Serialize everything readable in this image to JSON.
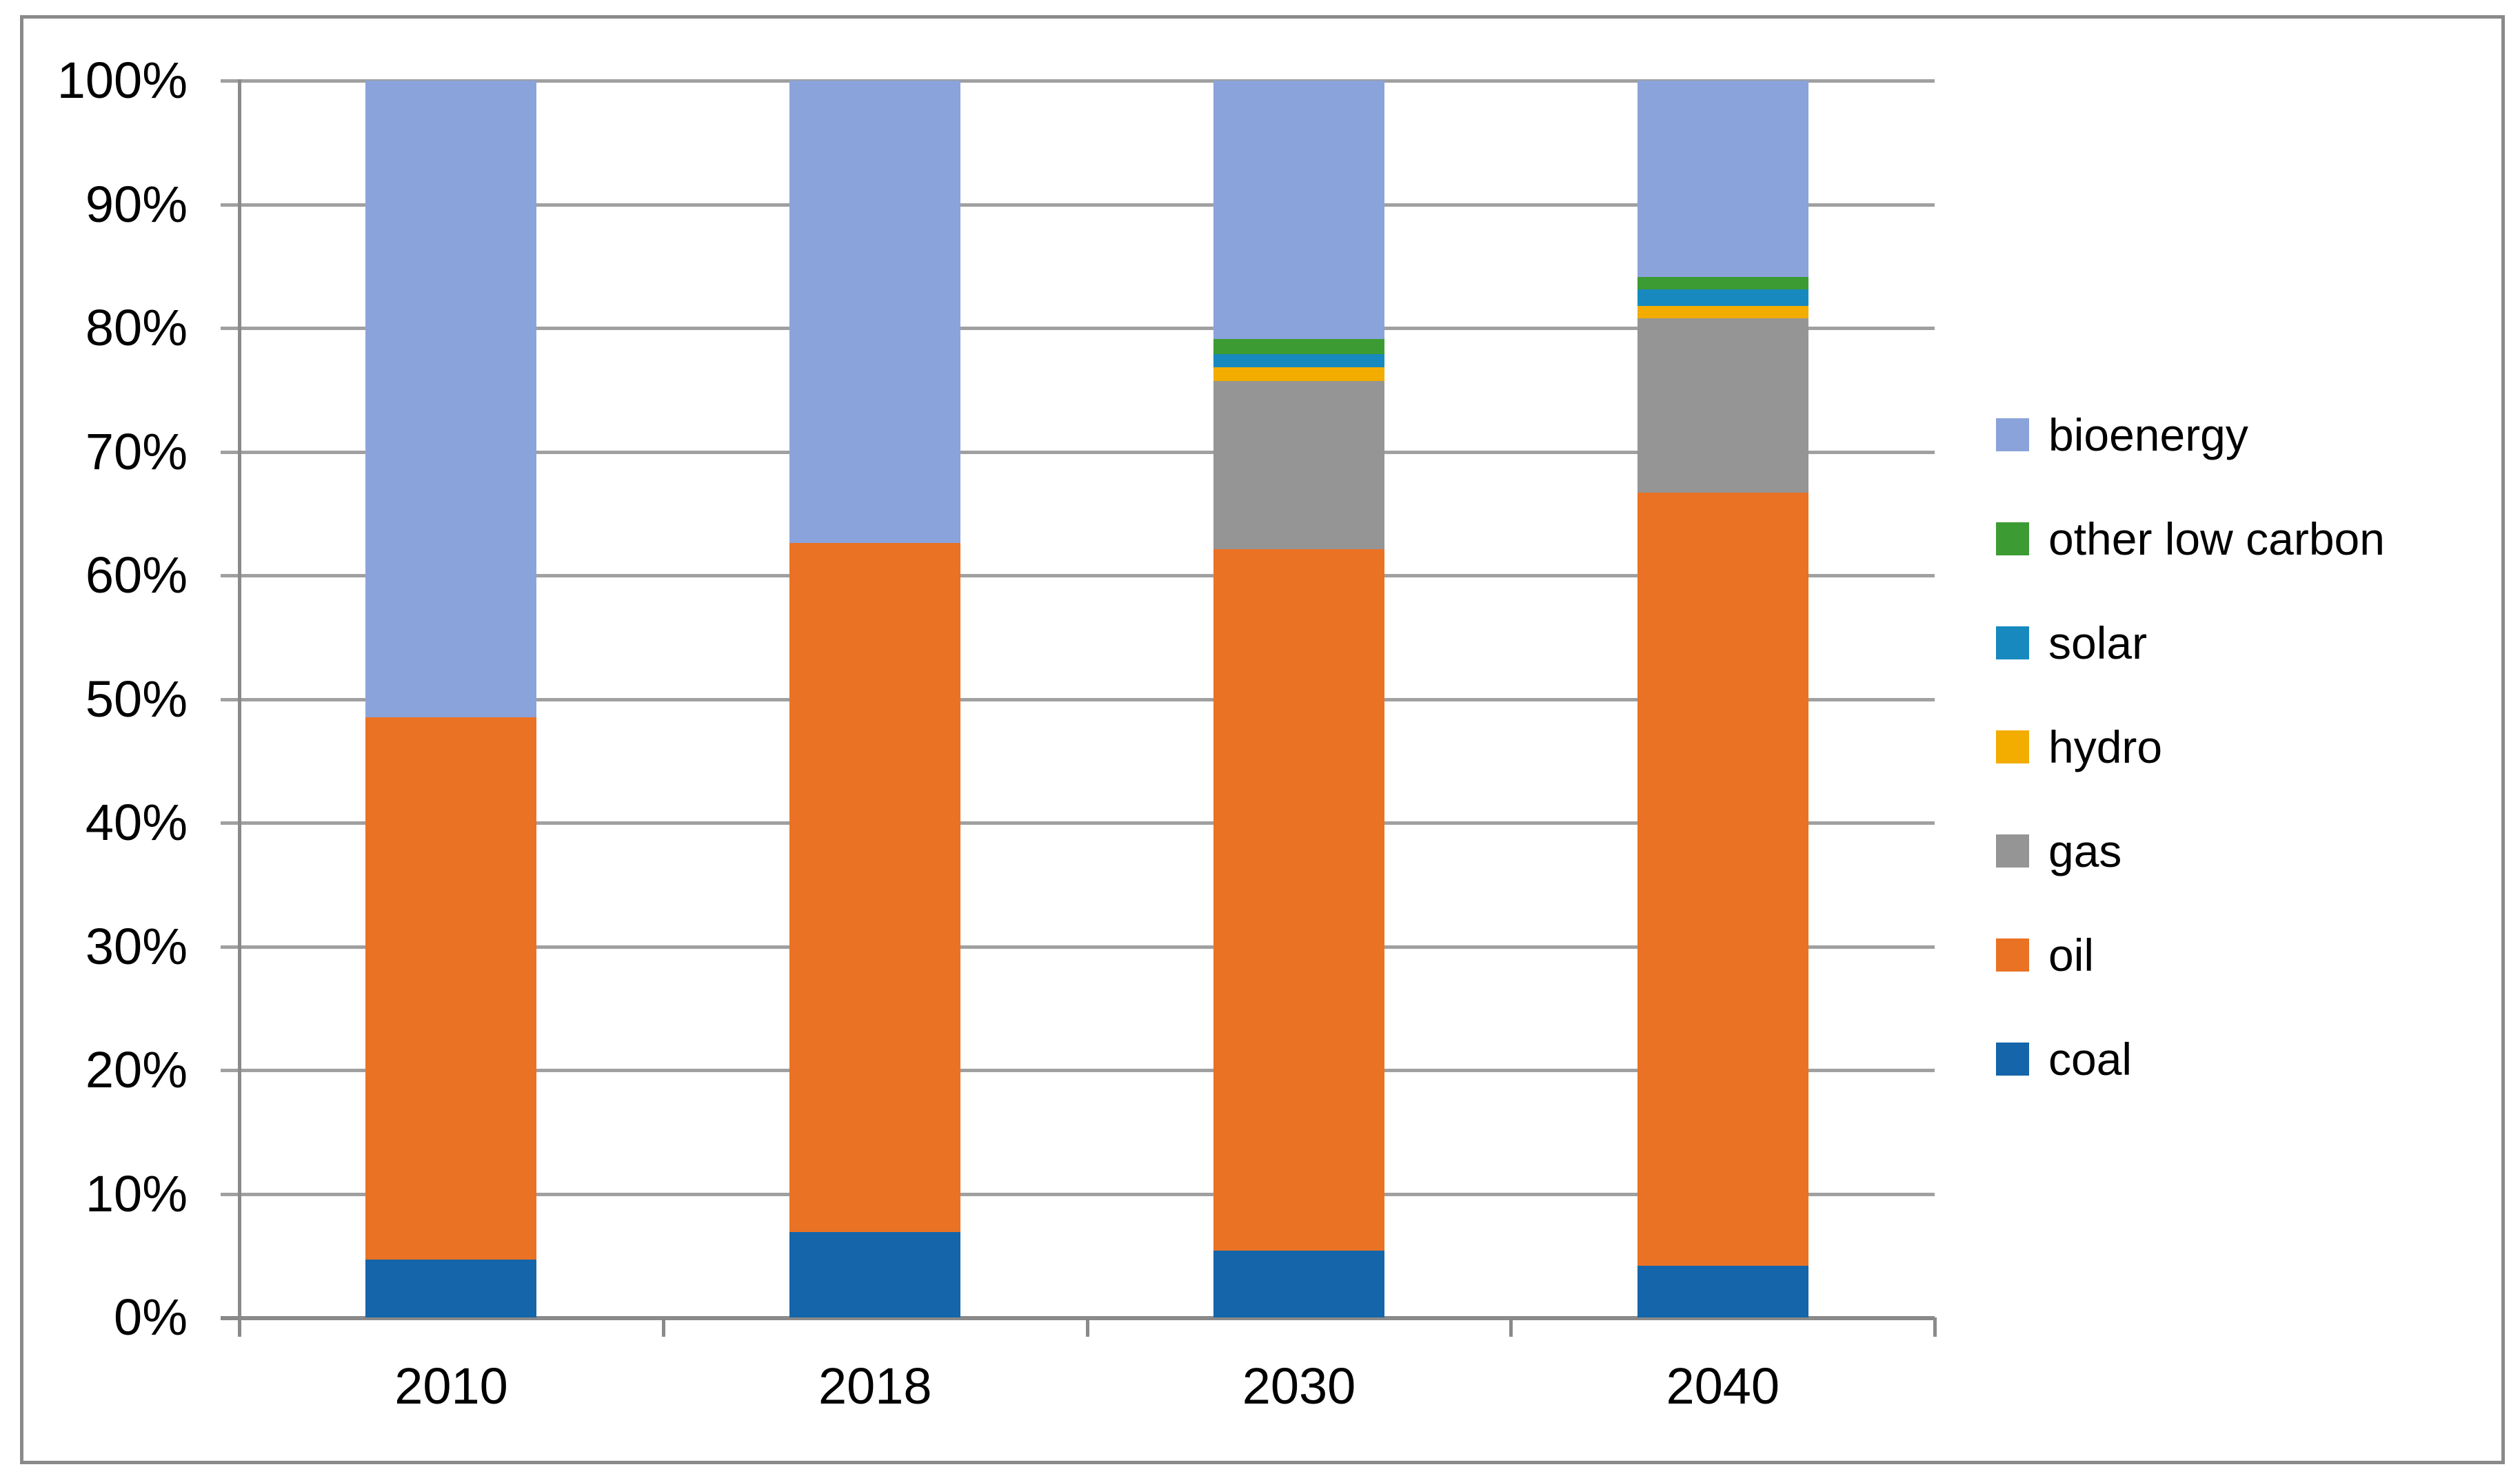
{
  "chart_data": {
    "type": "bar",
    "stacked": true,
    "percent_stacked": true,
    "title": "",
    "xlabel": "",
    "ylabel": "",
    "categories": [
      "2010",
      "2018",
      "2030",
      "2040"
    ],
    "series": [
      {
        "name": "coal",
        "color": "#1465A9",
        "values": [
          4.7,
          6.9,
          5.4,
          4.2
        ]
      },
      {
        "name": "oil",
        "color": "#EA7224",
        "values": [
          43.8,
          55.7,
          56.7,
          62.5
        ]
      },
      {
        "name": "gas",
        "color": "#959595",
        "values": [
          0,
          0,
          13.6,
          14.1
        ]
      },
      {
        "name": "hydro",
        "color": "#F3AC00",
        "values": [
          0,
          0,
          1.1,
          1.0
        ]
      },
      {
        "name": "solar",
        "color": "#1789BF",
        "values": [
          0,
          0,
          1.1,
          1.3
        ]
      },
      {
        "name": "other low carbon",
        "color": "#3C9B33",
        "values": [
          0,
          0,
          1.2,
          1.0
        ]
      },
      {
        "name": "bioenergy",
        "color": "#8BA3DB",
        "values": [
          51.5,
          37.4,
          20.9,
          15.9
        ]
      }
    ],
    "ylim": [
      0,
      100
    ],
    "y_ticks": [
      "100%",
      "90%",
      "80%",
      "70%",
      "60%",
      "50%",
      "40%",
      "30%",
      "20%",
      "10%",
      "0%"
    ],
    "grid": "horizontal",
    "legend_position": "right",
    "legend_order_top_to_bottom": [
      "bioenergy",
      "other low carbon",
      "solar",
      "hydro",
      "gas",
      "oil",
      "coal"
    ]
  },
  "colors": {
    "background": "#FFFFFF",
    "gridline": "#A0A0A0",
    "axis": "#8A8A8A",
    "frame": "#8A8A8A",
    "text": "#000000"
  }
}
